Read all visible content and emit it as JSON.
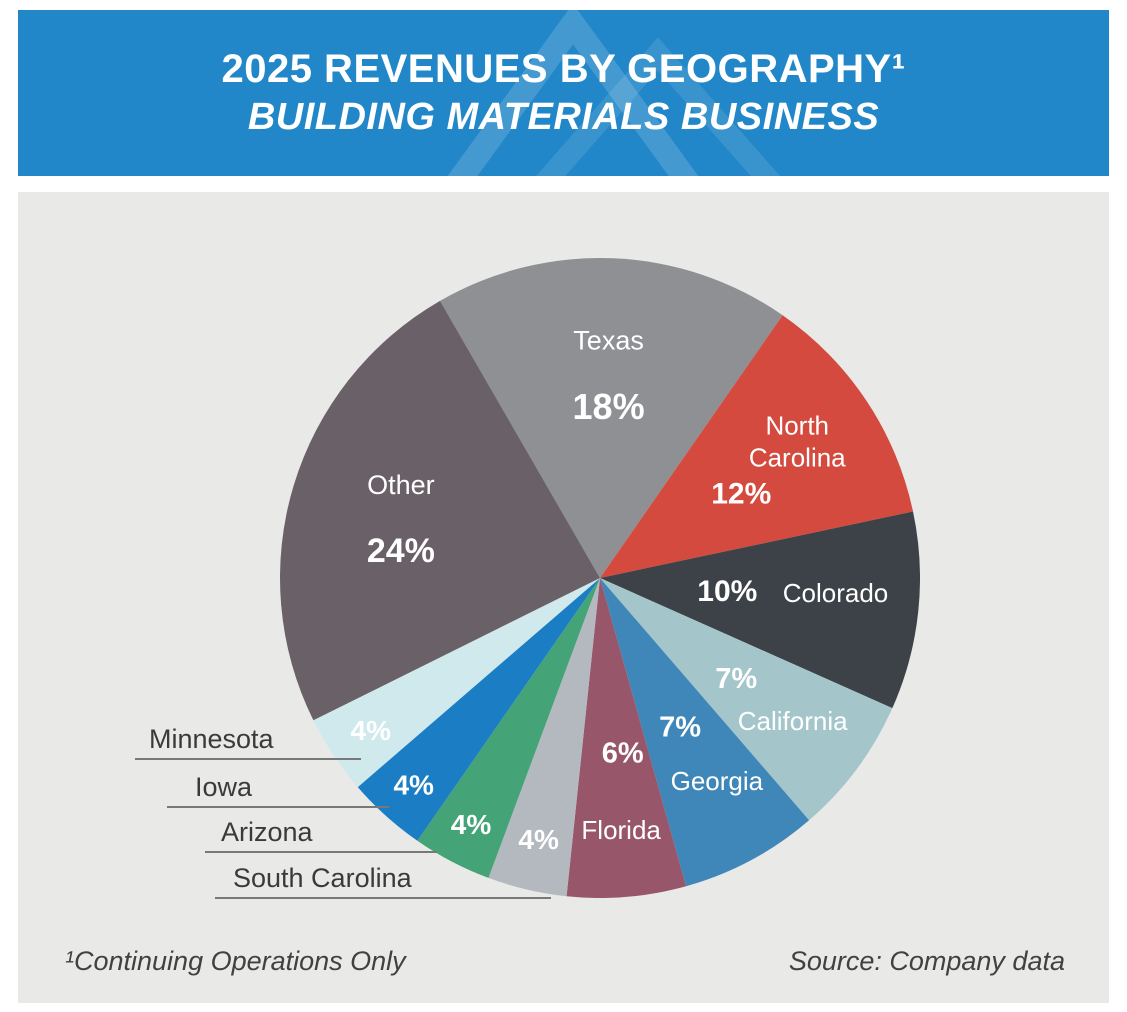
{
  "header": {
    "title_line1": "2025 REVENUES BY GEOGRAPHY¹",
    "title_line2": "BUILDING MATERIALS BUSINESS"
  },
  "footer": {
    "footnote": "¹Continuing Operations Only",
    "source": "Source: Company data"
  },
  "theme": {
    "banner_blue": "#2187c8",
    "panel_gray": "#e9e9e8",
    "callout_text_color": "#3a3a3a",
    "slice_label_color": "#ffffff"
  },
  "chart_data": {
    "type": "pie",
    "title": "2025 REVENUES BY GEOGRAPHY¹ BUILDING MATERIALS BUSINESS",
    "units": "percent of revenue",
    "legend": "none",
    "labels_on_slices": true,
    "start_angle": -30,
    "categories": [
      "Texas",
      "North Carolina",
      "Colorado",
      "California",
      "Georgia",
      "Florida",
      "South Carolina",
      "Arizona",
      "Iowa",
      "Minnesota",
      "Other"
    ],
    "values": [
      18,
      12,
      10,
      7,
      7,
      6,
      4,
      4,
      4,
      4,
      24
    ],
    "slices": [
      {
        "name": "Texas",
        "value": 18,
        "color": "#8e9094",
        "label": {
          "mode": "stack",
          "anchor_r": 0.64,
          "name_dy": -33,
          "pct_dy": 33,
          "name_size": 27,
          "pct_size": 36
        }
      },
      {
        "name": "North Carolina",
        "value": 12,
        "color": "#d44a3f",
        "label": {
          "mode": "split",
          "name_r": 0.77,
          "name_dx": -8,
          "name_lines": [
            "North",
            "Carolina"
          ],
          "pct_r": 0.53,
          "pct_dy": 10,
          "pct_size": 30
        }
      },
      {
        "name": "Colorado",
        "value": 10,
        "color": "#3d4248",
        "label": {
          "mode": "split",
          "name_r": 0.74,
          "name_dy": -10,
          "pct_r": 0.4,
          "pct_size": 30
        }
      },
      {
        "name": "California",
        "value": 7,
        "color": "#a4c6ca",
        "label": {
          "mode": "split",
          "name_r": 0.75,
          "pct_r": 0.53,
          "pct_size": 29
        }
      },
      {
        "name": "Georgia",
        "value": 7,
        "color": "#3f87b8",
        "label": {
          "mode": "split",
          "name_r": 0.72,
          "name_dx": 8,
          "pct_r": 0.53,
          "pct_size": 29
        }
      },
      {
        "name": "Florida",
        "value": 6,
        "color": "#98566a",
        "label": {
          "mode": "split",
          "name_r": 0.79,
          "pct_r": 0.55,
          "pct_dx": 8,
          "pct_size": 29
        }
      },
      {
        "name": "South Carolina",
        "value": 4,
        "color": "#b3b9be",
        "label": {
          "mode": "pct",
          "pct_r": 0.84,
          "pct_size": 28
        }
      },
      {
        "name": "Arizona",
        "value": 4,
        "color": "#44a377",
        "label": {
          "mode": "pct",
          "pct_r": 0.87,
          "pct_size": 28
        }
      },
      {
        "name": "Iowa",
        "value": 4,
        "color": "#1b7ec5",
        "label": {
          "mode": "pct",
          "pct_r": 0.87,
          "pct_size": 28
        }
      },
      {
        "name": "Minnesota",
        "value": 4,
        "color": "#cfe9ed",
        "label": {
          "mode": "pct",
          "pct_r": 0.86,
          "pct_size": 28
        }
      },
      {
        "name": "Other",
        "value": 24,
        "color": "#6a6067",
        "label": {
          "mode": "stack",
          "anchor_r": 0.65,
          "name_dy": -33,
          "pct_dy": 33,
          "name_size": 27,
          "pct_size": 34
        }
      }
    ]
  }
}
